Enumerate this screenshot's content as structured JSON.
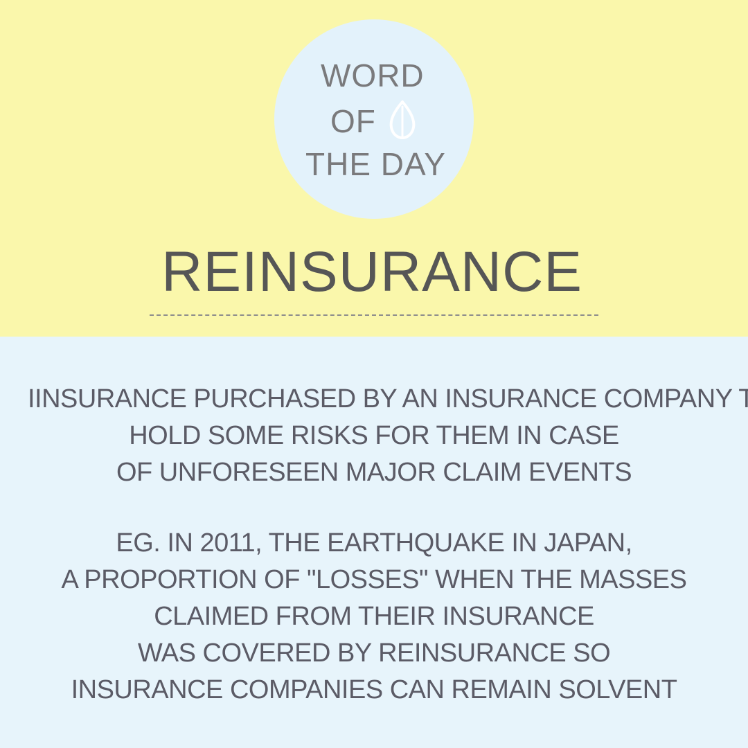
{
  "header": {
    "badge_lines": [
      "WORD",
      "OF",
      "THE DAY"
    ],
    "badge_icon": "leaf-icon",
    "word": "REINSURANCE"
  },
  "definition": {
    "lines": [
      "IINSURANCE PURCHASED BY AN INSURANCE COMPANY TO",
      "HOLD SOME RISKS FOR THEM IN CASE",
      "OF UNFORESEEN MAJOR CLAIM EVENTS"
    ]
  },
  "example": {
    "lines": [
      "EG. IN 2011, THE EARTHQUAKE IN JAPAN,",
      "A PROPORTION OF \"LOSSES\" WHEN THE MASSES",
      "CLAIMED FROM THEIR INSURANCE",
      "WAS COVERED BY REINSURANCE SO",
      "INSURANCE COMPANIES CAN REMAIN SOLVENT"
    ]
  },
  "colors": {
    "top_background": "#faf7ab",
    "bottom_background": "#e7f4fb",
    "badge_background": "#e3f2fb",
    "text": "#5b5b66"
  }
}
